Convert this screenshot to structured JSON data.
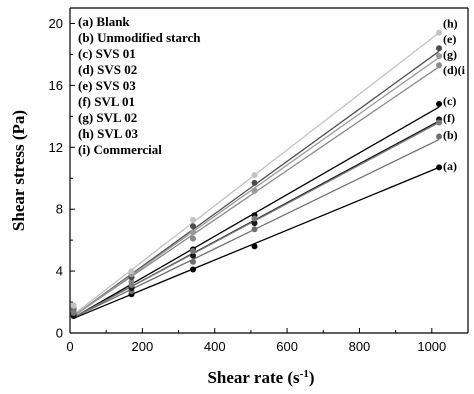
{
  "chart_data": {
    "type": "scatter",
    "xlabel": "Shear rate (s",
    "xlabel_superscript": "-1",
    "xlabel_suffix": ")",
    "ylabel": "Shear stress (Pa)",
    "xlim": [
      0,
      1100
    ],
    "ylim": [
      0,
      21
    ],
    "x_ticks": [
      0,
      200,
      400,
      600,
      800,
      1000
    ],
    "y_ticks": [
      0,
      4,
      8,
      12,
      16,
      20
    ],
    "x_tick_labels": [
      "0",
      "200",
      "400",
      "600",
      "800",
      "1000"
    ],
    "y_tick_labels": [
      "0",
      "4",
      "8",
      "12",
      "16",
      "20"
    ],
    "grid": false,
    "legend_position": "top-left",
    "legend_entries": [
      "(a) Blank",
      "(b) Unmodified starch",
      "(c) SVS 01",
      "(d) SVS 02",
      "(e) SVS 03",
      "(f) SVL 01",
      "(g) SVL 02",
      "(h) SVL 03",
      "(i) Commercial"
    ],
    "x": [
      10,
      170,
      340,
      510,
      1020
    ],
    "series": [
      {
        "tag": "(a)",
        "color": "#000000",
        "values": [
          1.1,
          2.5,
          4.1,
          5.6,
          10.7
        ],
        "fit": [
          0.95,
          10.7
        ]
      },
      {
        "tag": "(b)",
        "color": "#6e6e6e",
        "values": [
          1.2,
          2.7,
          4.6,
          6.7,
          12.7
        ],
        "fit": [
          1.0,
          12.5
        ]
      },
      {
        "tag": "(c)",
        "color": "#000000",
        "values": [
          1.3,
          3.0,
          5.4,
          7.6,
          14.8
        ],
        "fit": [
          1.0,
          14.6
        ]
      },
      {
        "tag": "(d)",
        "color": "#8a8a8a",
        "values": [
          1.5,
          3.3,
          6.1,
          9.2,
          17.3
        ],
        "fit": [
          1.1,
          17.2
        ]
      },
      {
        "tag": "(e)",
        "color": "#4d4d4d",
        "values": [
          1.6,
          3.6,
          6.9,
          9.7,
          18.4
        ],
        "fit": [
          1.1,
          18.2
        ]
      },
      {
        "tag": "(f)",
        "color": "#1a1a1a",
        "values": [
          1.2,
          2.9,
          5.0,
          7.1,
          13.8
        ],
        "fit": [
          1.0,
          13.7
        ]
      },
      {
        "tag": "(g)",
        "color": "#9a9a9a",
        "values": [
          1.7,
          3.8,
          6.5,
          9.2,
          17.9
        ],
        "fit": [
          1.1,
          17.8
        ]
      },
      {
        "tag": "(h)",
        "color": "#c2c2c2",
        "values": [
          1.8,
          4.0,
          7.3,
          10.2,
          19.4
        ],
        "fit": [
          1.2,
          19.4
        ]
      },
      {
        "tag": "(i)",
        "color": "#7a7a7a",
        "values": [
          1.3,
          3.1,
          5.3,
          7.4,
          13.6
        ],
        "fit": [
          1.0,
          13.6
        ]
      }
    ],
    "end_labels": [
      {
        "text": "(h)",
        "y_value": 20.0
      },
      {
        "text": "(e)",
        "y_value": 19.0
      },
      {
        "text": "(g)",
        "y_value": 18.0
      },
      {
        "text": "(d)(i",
        "y_value": 17.0
      },
      {
        "text": "(c)",
        "y_value": 15.0
      },
      {
        "text": "(f)",
        "y_value": 13.9
      },
      {
        "text": "(b)",
        "y_value": 12.8
      },
      {
        "text": "(a)",
        "y_value": 10.8
      }
    ]
  }
}
